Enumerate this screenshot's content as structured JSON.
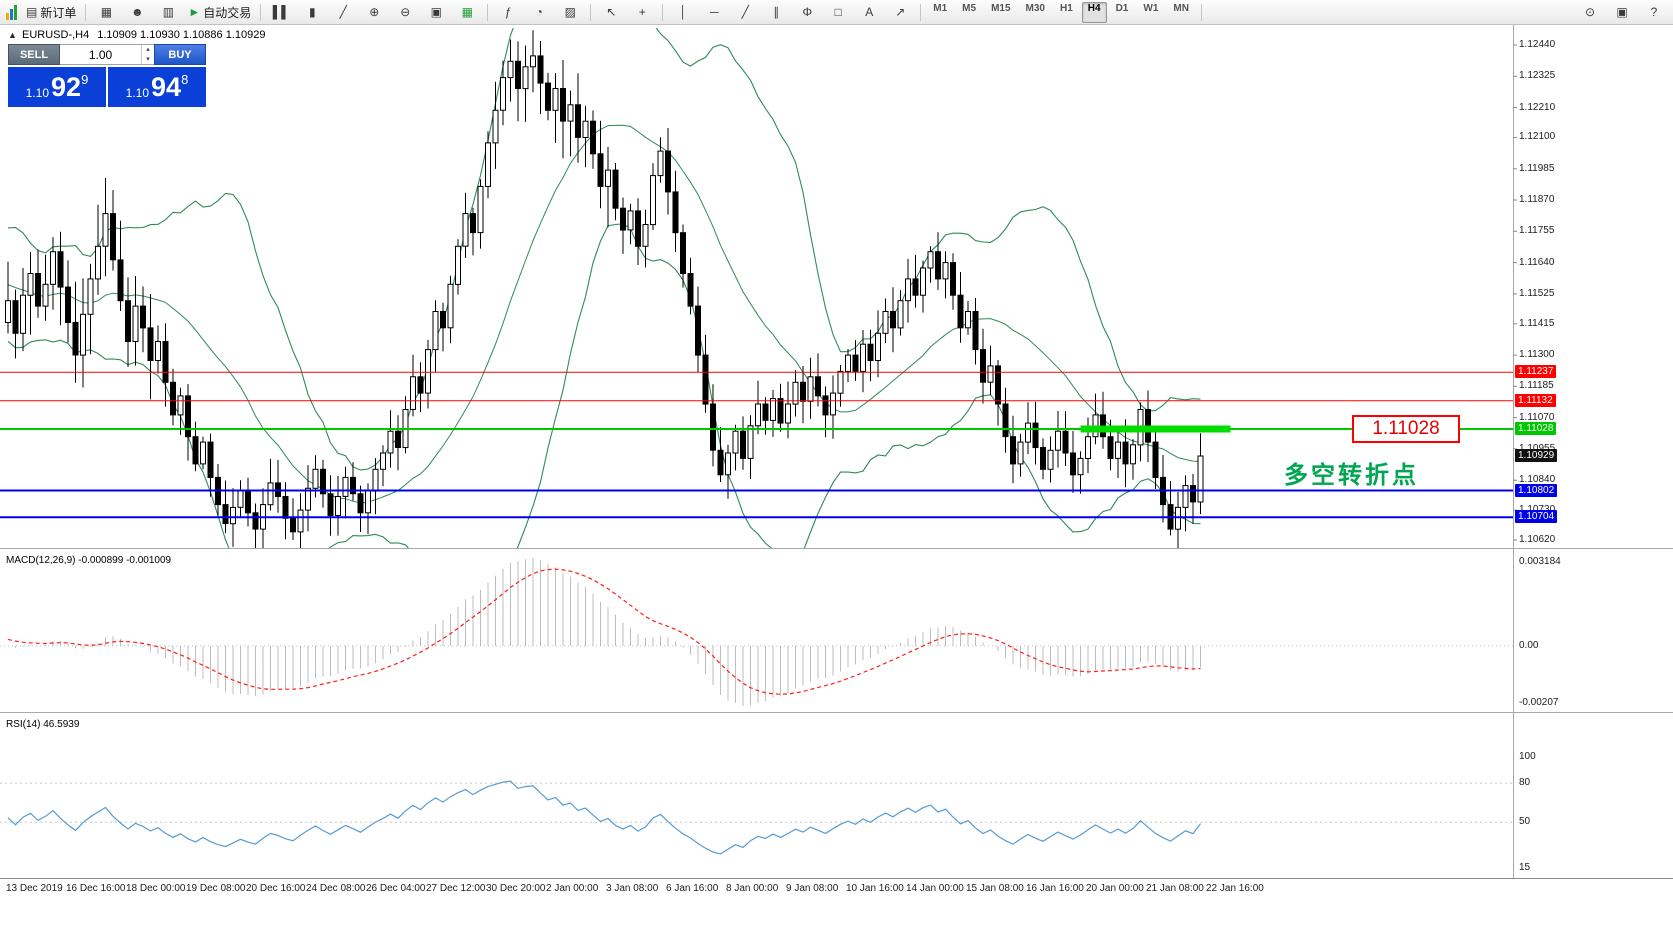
{
  "toolbar": {
    "items": [
      {
        "type": "logo",
        "name": "mt4-logo"
      },
      {
        "type": "button",
        "name": "new-order-button",
        "glyph": "▤",
        "label": "新订单"
      },
      {
        "type": "sep"
      },
      {
        "type": "button",
        "name": "charts-window-button",
        "glyph": "▦"
      },
      {
        "type": "button",
        "name": "profiles-button",
        "glyph": "☻"
      },
      {
        "type": "button",
        "name": "market-watch-button",
        "glyph": "▥"
      },
      {
        "type": "button",
        "name": "autotrading-button",
        "glyph": "►",
        "color": "#1d9e33",
        "label": "自动交易"
      },
      {
        "type": "sep"
      },
      {
        "type": "button",
        "name": "bar-chart-button",
        "glyph": "▌▌"
      },
      {
        "type": "button",
        "name": "candlestick-chart-button",
        "glyph": "▮"
      },
      {
        "type": "button",
        "name": "line-chart-button",
        "glyph": "╱"
      },
      {
        "type": "button",
        "name": "zoom-in-button",
        "glyph": "⊕"
      },
      {
        "type": "button",
        "name": "zoom-out-button",
        "glyph": "⊖"
      },
      {
        "type": "button",
        "name": "tile-windows-button",
        "glyph": "▣"
      },
      {
        "type": "button",
        "name": "grid-button",
        "glyph": "▦",
        "color": "#1d9e33"
      },
      {
        "type": "sep"
      },
      {
        "type": "button",
        "name": "indicators-button",
        "glyph": "ƒ"
      },
      {
        "type": "button",
        "name": "periods-button",
        "glyph": "◔"
      },
      {
        "type": "button",
        "name": "templates-button",
        "glyph": "▨"
      },
      {
        "type": "sep"
      },
      {
        "type": "button",
        "name": "cursor-button",
        "glyph": "↖"
      },
      {
        "type": "button",
        "name": "crosshair-button",
        "glyph": "+"
      },
      {
        "type": "sep"
      },
      {
        "type": "button",
        "name": "vertical-line-button",
        "glyph": "│"
      },
      {
        "type": "button",
        "name": "horizontal-line-button",
        "glyph": "─"
      },
      {
        "type": "button",
        "name": "trendline-button",
        "glyph": "╱"
      },
      {
        "type": "button",
        "name": "channel-button",
        "glyph": "∥"
      },
      {
        "type": "button",
        "name": "fibonacci-button",
        "glyph": "Φ"
      },
      {
        "type": "button",
        "name": "shapes-button",
        "glyph": "□"
      },
      {
        "type": "button",
        "name": "text-button",
        "glyph": "A"
      },
      {
        "type": "button",
        "name": "arrow-button",
        "glyph": "↗"
      },
      {
        "type": "sep"
      },
      {
        "type": "timeframes"
      },
      {
        "type": "sep"
      }
    ],
    "timeframes": [
      "M1",
      "M5",
      "M15",
      "M30",
      "H1",
      "H4",
      "D1",
      "W1",
      "MN"
    ],
    "active_timeframe": "H4",
    "right_items": [
      {
        "name": "search-button",
        "glyph": "⊙"
      },
      {
        "name": "new-window-button",
        "glyph": "▣"
      },
      {
        "name": "help-button",
        "glyph": "?"
      }
    ]
  },
  "icons": {
    "collapse": "▲",
    "spin_up": "▴",
    "spin_down": "▾"
  },
  "chart_header": {
    "symbol": "EURUSD-,H4",
    "ohlc": "1.10909 1.10930 1.10886 1.10929"
  },
  "one_click": {
    "sell_label": "SELL",
    "buy_label": "BUY",
    "volume": "1.00",
    "sell_price_prefix": "1.10",
    "sell_price_main": "92",
    "sell_price_pip": "9",
    "buy_price_prefix": "1.10",
    "buy_price_main": "94",
    "buy_price_pip": "8"
  },
  "price_axis": {
    "ticks": [
      "1.12440",
      "1.12325",
      "1.12210",
      "1.12100",
      "1.11985",
      "1.11870",
      "1.11755",
      "1.11640",
      "1.11525",
      "1.11415",
      "1.11300",
      "1.11185",
      "1.11070",
      "1.10955",
      "1.10840",
      "1.10730",
      "1.10620"
    ]
  },
  "levels": [
    {
      "label": "1.11237",
      "price": 1.11237,
      "color": "#FF0000",
      "width": 1
    },
    {
      "label": "1.11132",
      "price": 1.11132,
      "color": "#FF0000",
      "width": 1
    },
    {
      "label": "1.11028",
      "price": 1.11028,
      "color": "#00C800",
      "width": 2
    },
    {
      "label": "1.10802",
      "price": 1.10802,
      "color": "#0000E8",
      "width": 2
    },
    {
      "label": "1.10704",
      "price": 1.10704,
      "color": "#0000E8",
      "width": 2
    }
  ],
  "current_price": {
    "label": "1.10929",
    "price": 1.10929,
    "color": "#111111"
  },
  "annotations": {
    "callout_text": "1.11028",
    "note_text": "多空转折点",
    "highlight": {
      "price": 1.11028,
      "from_index": 143,
      "to_index": 163,
      "color": "#00DC00",
      "height": 7
    }
  },
  "macd_panel": {
    "label": "MACD(12,26,9) -0.000899 -0.001009",
    "scale_max": "0.003184",
    "scale_zero": "0.00",
    "scale_min": "-0.00207"
  },
  "rsi_panel": {
    "label": "RSI(14) 46.5939",
    "scale_labels": [
      {
        "v": 100,
        "label": "100"
      },
      {
        "v": 80,
        "label": "80"
      },
      {
        "v": 50,
        "label": "50"
      },
      {
        "v": 15,
        "label": "15"
      }
    ]
  },
  "time_axis": [
    "13 Dec 2019",
    "16 Dec 16:00",
    "18 Dec 00:00",
    "19 Dec 08:00",
    "20 Dec 16:00",
    "24 Dec 08:00",
    "26 Dec 04:00",
    "27 Dec 12:00",
    "30 Dec 20:00",
    "2 Jan 00:00",
    "3 Jan 08:00",
    "6 Jan 16:00",
    "8 Jan 00:00",
    "9 Jan 08:00",
    "10 Jan 16:00",
    "14 Jan 00:00",
    "15 Jan 08:00",
    "16 Jan 16:00",
    "20 Jan 00:00",
    "21 Jan 08:00",
    "22 Jan 16:00"
  ],
  "chart_data": {
    "type": "candlestick",
    "symbol": "EURUSD",
    "period": "H4",
    "open": "1.10909",
    "high": "1.10930",
    "low": "1.10886",
    "close": "1.10929",
    "y_range": [
      1.1062,
      1.1244
    ],
    "indicators": [
      {
        "name": "Bollinger Bands",
        "period": 20,
        "deviation": 2,
        "color": "#2E8B57"
      },
      {
        "name": "MACD",
        "fast": 12,
        "slow": 26,
        "signal": 9,
        "main": -0.000899,
        "signal_value": -0.001009
      },
      {
        "name": "RSI",
        "period": 14,
        "value": 46.5939
      }
    ],
    "warmup_closes": [
      1.112,
      1.1128,
      1.1136,
      1.1144,
      1.1152,
      1.116,
      1.115,
      1.1158,
      1.1166,
      1.1174,
      1.1168,
      1.116,
      1.117,
      1.1178,
      1.117,
      1.1162,
      1.1154,
      1.1146,
      1.1154,
      1.1162,
      1.117,
      1.1162,
      1.1152,
      1.1142,
      1.115,
      1.1158,
      1.1148,
      1.114,
      1.1148,
      1.1142
    ],
    "closes": [
      1.115,
      1.1138,
      1.1152,
      1.116,
      1.1148,
      1.1156,
      1.1168,
      1.1155,
      1.1142,
      1.113,
      1.1145,
      1.1158,
      1.117,
      1.1182,
      1.1165,
      1.115,
      1.1135,
      1.1148,
      1.114,
      1.1128,
      1.1135,
      1.112,
      1.1108,
      1.1115,
      1.11,
      1.109,
      1.1098,
      1.1085,
      1.1075,
      1.1068,
      1.1074,
      1.108,
      1.1072,
      1.1066,
      1.1075,
      1.1083,
      1.1078,
      1.107,
      1.1065,
      1.1073,
      1.1081,
      1.1088,
      1.1079,
      1.1071,
      1.1078,
      1.1085,
      1.1079,
      1.1072,
      1.108,
      1.1088,
      1.1094,
      1.1102,
      1.1096,
      1.111,
      1.1122,
      1.1116,
      1.1132,
      1.1146,
      1.114,
      1.1156,
      1.117,
      1.1182,
      1.1175,
      1.1192,
      1.1208,
      1.122,
      1.1232,
      1.1238,
      1.1228,
      1.1236,
      1.124,
      1.123,
      1.122,
      1.1228,
      1.1216,
      1.1222,
      1.121,
      1.1216,
      1.1204,
      1.1192,
      1.1198,
      1.1184,
      1.1176,
      1.1183,
      1.117,
      1.1178,
      1.1196,
      1.1205,
      1.119,
      1.1175,
      1.116,
      1.1148,
      1.113,
      1.1112,
      1.1095,
      1.1086,
      1.1094,
      1.1102,
      1.1092,
      1.1104,
      1.1112,
      1.1106,
      1.1114,
      1.1105,
      1.1112,
      1.112,
      1.1113,
      1.1122,
      1.1115,
      1.1108,
      1.1116,
      1.1124,
      1.113,
      1.1124,
      1.1134,
      1.1128,
      1.1138,
      1.1146,
      1.114,
      1.115,
      1.1158,
      1.1152,
      1.1162,
      1.1168,
      1.1158,
      1.1164,
      1.1152,
      1.114,
      1.1146,
      1.1132,
      1.112,
      1.1126,
      1.1112,
      1.11,
      1.109,
      1.1098,
      1.1105,
      1.1096,
      1.1088,
      1.1095,
      1.1102,
      1.1094,
      1.1086,
      1.1092,
      1.11,
      1.1108,
      1.11,
      1.1092,
      1.1098,
      1.109,
      1.1097,
      1.111,
      1.1098,
      1.1085,
      1.1075,
      1.1066,
      1.1074,
      1.1082,
      1.1076,
      1.10929
    ]
  }
}
